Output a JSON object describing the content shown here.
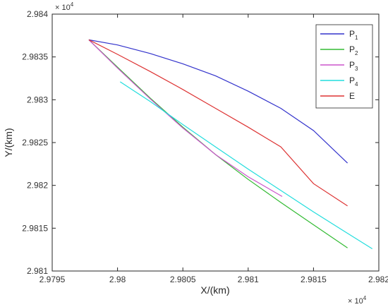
{
  "chart_data": {
    "type": "line",
    "xlabel": "X/(km)",
    "ylabel": "Y/(km)",
    "x_exponent_label": "× 10",
    "x_exponent_power": "4",
    "y_exponent_label": "× 10",
    "y_exponent_power": "4",
    "xlim": [
      29795,
      29820
    ],
    "ylim": [
      29810,
      29840
    ],
    "x_ticks": [
      29795,
      29800,
      29805,
      29810,
      29815,
      29820
    ],
    "x_tick_labels": [
      "2.9795",
      "2.98",
      "2.9805",
      "2.981",
      "2.9815",
      "2.982"
    ],
    "y_ticks": [
      29810,
      29815,
      29820,
      29825,
      29830,
      29835,
      29840
    ],
    "y_tick_labels": [
      "2.981",
      "2.9815",
      "2.982",
      "2.9825",
      "2.983",
      "2.9835",
      "2.984"
    ],
    "grid": false,
    "legend_position": "top-right",
    "series": [
      {
        "name": "P",
        "subscript": "1",
        "color": "#3333cc",
        "points": [
          [
            29797.8,
            29837.0
          ],
          [
            29800.0,
            29836.4
          ],
          [
            29802.5,
            29835.4
          ],
          [
            29805.0,
            29834.2
          ],
          [
            29807.5,
            29832.8
          ],
          [
            29810.0,
            29831.0
          ],
          [
            29812.5,
            29829.0
          ],
          [
            29815.0,
            29826.4
          ],
          [
            29817.6,
            29822.6
          ]
        ]
      },
      {
        "name": "P",
        "subscript": "2",
        "color": "#33bb33",
        "points": [
          [
            29797.8,
            29837.0
          ],
          [
            29800.0,
            29833.8
          ],
          [
            29802.5,
            29830.2
          ],
          [
            29805.0,
            29826.8
          ],
          [
            29807.5,
            29823.6
          ],
          [
            29810.0,
            29820.7
          ],
          [
            29812.5,
            29818.0
          ],
          [
            29815.0,
            29815.4
          ],
          [
            29817.6,
            29812.7
          ]
        ]
      },
      {
        "name": "P",
        "subscript": "3",
        "color": "#cc55cc",
        "points": [
          [
            29797.8,
            29837.0
          ],
          [
            29800.0,
            29833.7
          ],
          [
            29802.5,
            29830.1
          ],
          [
            29805.0,
            29826.7
          ],
          [
            29807.5,
            29823.6
          ],
          [
            29810.0,
            29821.0
          ],
          [
            29812.6,
            29818.7
          ]
        ]
      },
      {
        "name": "P",
        "subscript": "4",
        "color": "#22dddd",
        "points": [
          [
            29800.2,
            29832.1
          ],
          [
            29802.5,
            29829.8
          ],
          [
            29805.0,
            29827.1
          ],
          [
            29807.5,
            29824.5
          ],
          [
            29810.0,
            29821.9
          ],
          [
            29812.5,
            29819.4
          ],
          [
            29815.0,
            29816.9
          ],
          [
            29817.5,
            29814.5
          ],
          [
            29819.5,
            29812.6
          ]
        ]
      },
      {
        "name": "E",
        "subscript": "",
        "color": "#dd3333",
        "points": [
          [
            29797.8,
            29837.0
          ],
          [
            29800.0,
            29835.3
          ],
          [
            29802.5,
            29833.3
          ],
          [
            29805.0,
            29831.2
          ],
          [
            29807.5,
            29829.0
          ],
          [
            29810.0,
            29826.8
          ],
          [
            29812.5,
            29824.5
          ],
          [
            29815.0,
            29820.2
          ],
          [
            29817.6,
            29817.6
          ]
        ]
      }
    ]
  }
}
